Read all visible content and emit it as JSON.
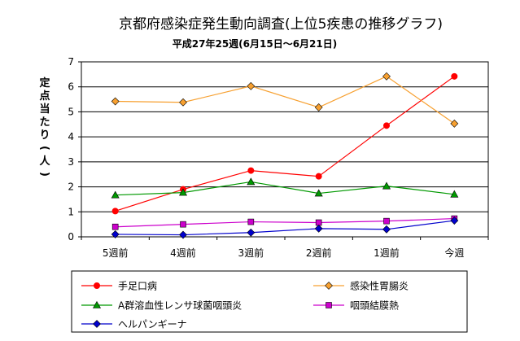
{
  "chart_data": {
    "type": "line",
    "title": "京都府感染症発生動向調査(上位5疾患の推移グラフ)",
    "subtitle": "平成27年25週(6月15日～6月21日)",
    "ylabel": "定点当たり(人)",
    "xlabel": "",
    "categories": [
      "5週前",
      "4週前",
      "3週前",
      "2週前",
      "1週前",
      "今週"
    ],
    "ylim": [
      0,
      7
    ],
    "yticks": [
      0,
      1,
      2,
      3,
      4,
      5,
      6,
      7
    ],
    "grid": true,
    "legend_position": "bottom",
    "series": [
      {
        "name": "手足口病",
        "color": "#ff0000",
        "marker": "circle",
        "values": [
          1.03,
          1.9,
          2.65,
          2.42,
          4.45,
          6.42
        ]
      },
      {
        "name": "感染性胃腸炎",
        "color": "#f7a030",
        "marker": "diamond",
        "values": [
          5.42,
          5.38,
          6.03,
          5.18,
          6.42,
          4.53
        ]
      },
      {
        "name": "A群溶血性レンサ球菌咽頭炎",
        "color": "#009900",
        "marker": "triangle",
        "values": [
          1.67,
          1.77,
          2.2,
          1.74,
          2.03,
          1.7
        ]
      },
      {
        "name": "咽頭結膜熱",
        "color": "#cc00cc",
        "marker": "square",
        "values": [
          0.4,
          0.5,
          0.6,
          0.57,
          0.63,
          0.73
        ]
      },
      {
        "name": "ヘルパンギーナ",
        "color": "#0000cc",
        "marker": "diamond",
        "values": [
          0.1,
          0.08,
          0.17,
          0.33,
          0.3,
          0.65
        ]
      }
    ]
  }
}
